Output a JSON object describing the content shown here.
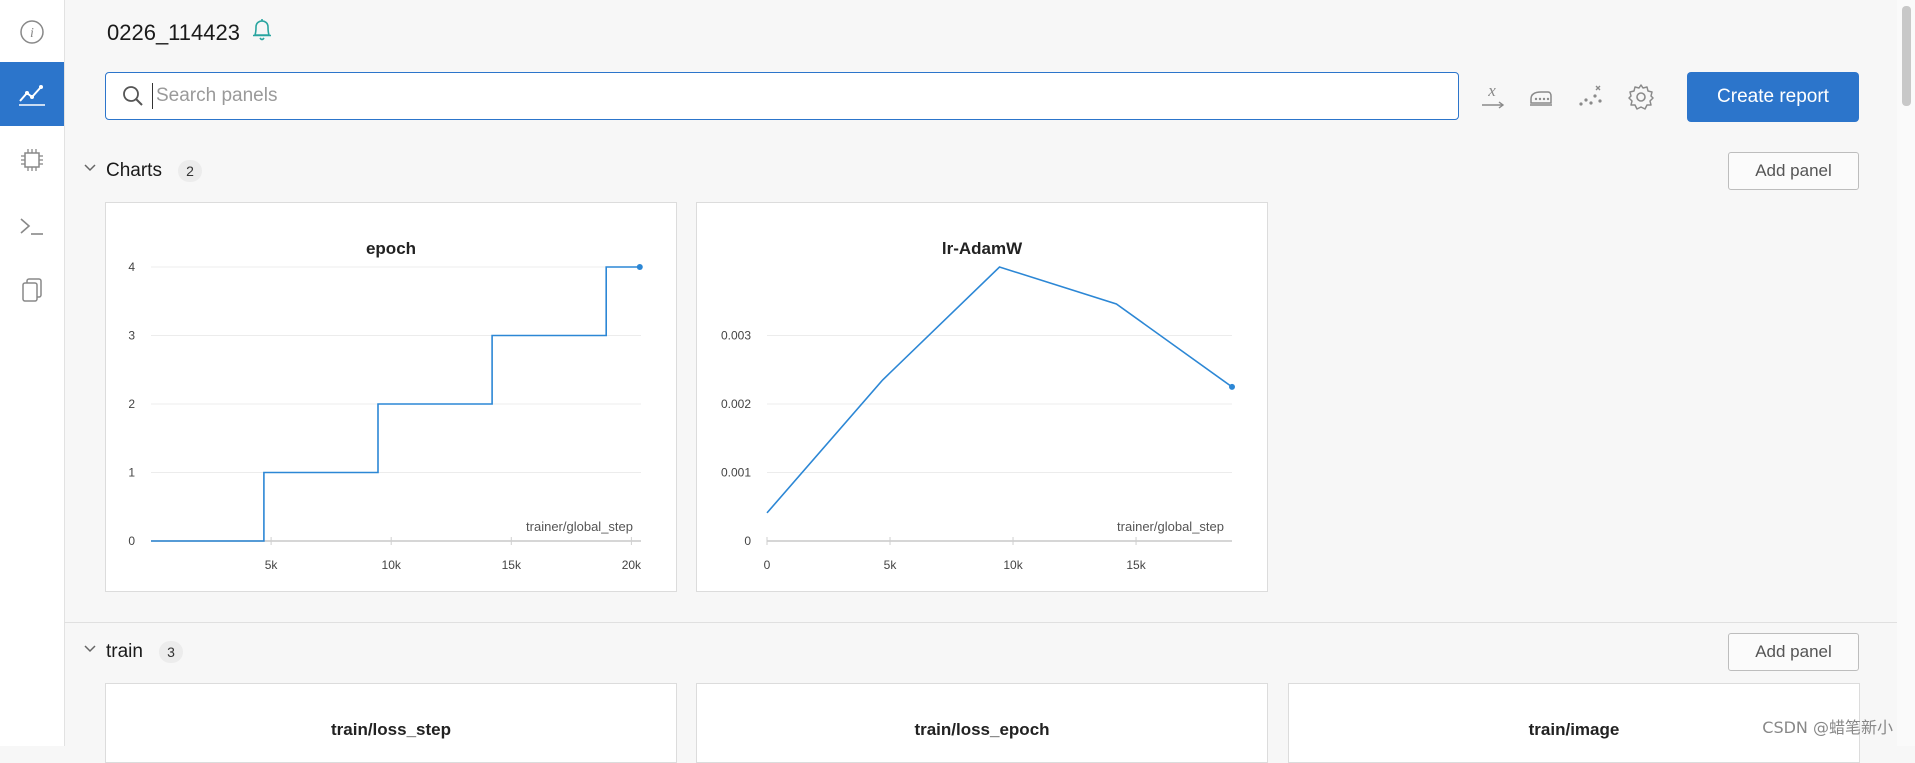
{
  "run": {
    "name": "0226_114423"
  },
  "search": {
    "placeholder": "Search panels",
    "value": ""
  },
  "toolbar": {
    "create_report_label": "Create report"
  },
  "sections": [
    {
      "title": "Charts",
      "count": "2",
      "add_panel_label": "Add panel",
      "expanded": true
    },
    {
      "title": "train",
      "count": "3",
      "add_panel_label": "Add panel",
      "expanded": true
    }
  ],
  "train_panels": [
    "train/loss_step",
    "train/loss_epoch",
    "train/image"
  ],
  "rail_icons": [
    "info-icon",
    "charts-icon",
    "system-icon",
    "terminal-icon",
    "files-icon"
  ],
  "colors": {
    "accent": "#2c75cb",
    "line": "#2c87d5"
  },
  "watermark": "CSDN @蜡笔新小",
  "chart_data": [
    {
      "type": "line",
      "title": "epoch",
      "xlabel": "trainer/global_step",
      "ylabel": "",
      "x_ticks": [
        "5k",
        "10k",
        "15k",
        "20k"
      ],
      "x_tick_values": [
        5000,
        10000,
        15000,
        20000
      ],
      "y_ticks": [
        "0",
        "1",
        "2",
        "3",
        "4"
      ],
      "y_tick_values": [
        0,
        1,
        2,
        3,
        4
      ],
      "xlim": [
        0,
        20400
      ],
      "ylim": [
        0,
        4
      ],
      "grid": true,
      "step": true,
      "series": [
        {
          "x": [
            0,
            4700,
            4700,
            9450,
            9450,
            14200,
            14200,
            18950,
            18950,
            20350
          ],
          "y": [
            0,
            0,
            1,
            1,
            2,
            2,
            3,
            3,
            4,
            4
          ]
        }
      ]
    },
    {
      "type": "line",
      "title": "lr-AdamW",
      "xlabel": "trainer/global_step",
      "ylabel": "",
      "x_ticks": [
        "0",
        "5k",
        "10k",
        "15k"
      ],
      "x_tick_values": [
        0,
        5000,
        10000,
        15000
      ],
      "y_ticks": [
        "0",
        "0.001",
        "0.002",
        "0.003"
      ],
      "y_tick_values": [
        0,
        0.001,
        0.002,
        0.003
      ],
      "xlim": [
        0,
        18900
      ],
      "ylim": [
        0,
        0.004
      ],
      "grid": true,
      "step": false,
      "series": [
        {
          "x": [
            0,
            4700,
            9450,
            14200,
            18900
          ],
          "y": [
            0.00041,
            0.00235,
            0.004,
            0.00346,
            0.00225
          ]
        }
      ]
    }
  ]
}
